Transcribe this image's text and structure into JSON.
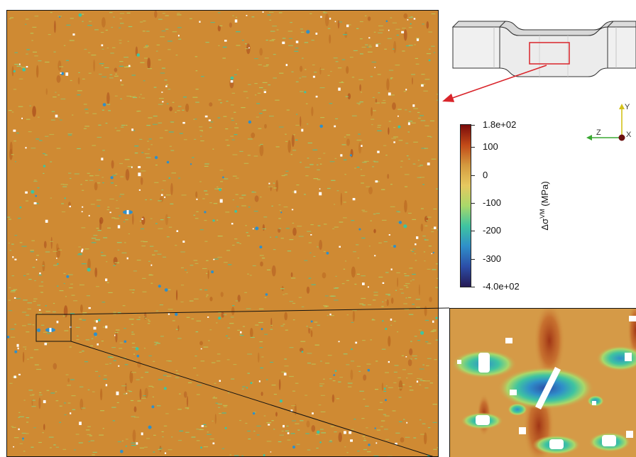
{
  "colorbar": {
    "title_prefix": "Δσ",
    "title_sup": "VM",
    "title_suffix": " (MPa)",
    "ticks": [
      {
        "label": "1.8e+02",
        "value": 180
      },
      {
        "label": "100",
        "value": 100
      },
      {
        "label": "0",
        "value": 0
      },
      {
        "label": "-100",
        "value": -100
      },
      {
        "label": "-200",
        "value": -200
      },
      {
        "label": "-300",
        "value": -300
      },
      {
        "label": "-4.0e+02",
        "value": -400
      }
    ],
    "range": [
      -400,
      180
    ],
    "colors": [
      "#7a0b0b",
      "#c24a18",
      "#d49a3f",
      "#e6c860",
      "#a9d86a",
      "#3fc4a0",
      "#2f8fc9",
      "#2c4ea8",
      "#251a55"
    ]
  },
  "axes": {
    "y": "Y",
    "z": "Z",
    "x": "X"
  },
  "colors": {
    "field": "#cf8a33",
    "highlight_box": "#d9252b",
    "arrow": "#d9252b",
    "pore": "#ffffff"
  }
}
